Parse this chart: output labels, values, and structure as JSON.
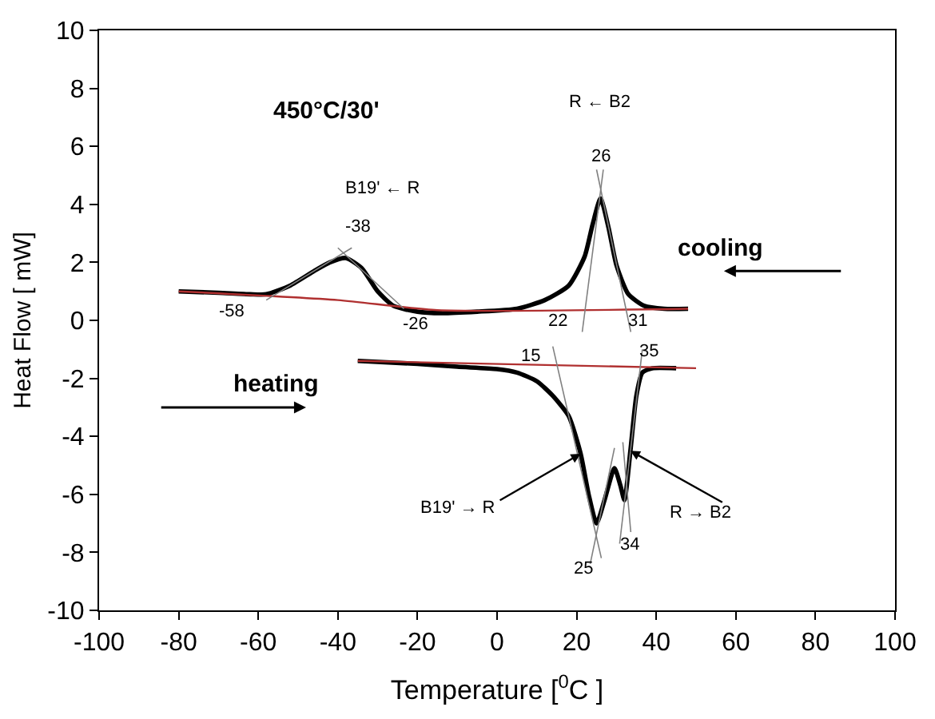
{
  "chart_data": {
    "type": "line",
    "xlabel": "Temperature [$^{0}$C ]",
    "ylabel": "Heat Flow [ mW]",
    "xlim": [
      -100,
      100
    ],
    "xticks": [
      -100,
      -80,
      -60,
      -40,
      -20,
      0,
      20,
      40,
      60,
      80,
      100
    ],
    "ylim": [
      -10,
      10
    ],
    "yticks": [
      -10,
      -8,
      -6,
      -4,
      -2,
      0,
      2,
      4,
      6,
      8,
      10
    ],
    "series": [
      {
        "color": "#000000",
        "x": [
          -80,
          -70,
          -62,
          -58,
          -52,
          -46,
          -42,
          -38,
          -34,
          -30,
          -26,
          -20,
          -14,
          -5,
          5,
          12,
          18,
          22,
          24,
          26,
          28,
          30,
          33,
          37,
          42,
          48
        ],
        "values": [
          1.0,
          0.95,
          0.9,
          0.9,
          1.2,
          1.7,
          2.0,
          2.15,
          1.8,
          1.0,
          0.5,
          0.3,
          0.25,
          0.3,
          0.4,
          0.7,
          1.2,
          2.2,
          3.3,
          4.2,
          3.2,
          1.9,
          0.9,
          0.5,
          0.4,
          0.4
        ]
      },
      {
        "color": "#000000",
        "x": [
          -35,
          -20,
          -10,
          0,
          5,
          10,
          14,
          18,
          21,
          23,
          25,
          27,
          29.5,
          31,
          32,
          33.5,
          35,
          36.5,
          39,
          45
        ],
        "values": [
          -1.4,
          -1.5,
          -1.6,
          -1.68,
          -1.8,
          -2.1,
          -2.6,
          -3.3,
          -4.6,
          -6.0,
          -7.0,
          -6.2,
          -5.1,
          -5.7,
          -6.2,
          -4.5,
          -2.6,
          -1.8,
          -1.65,
          -1.65
        ]
      },
      {
        "color": "#b03030",
        "x": [
          -80,
          -40,
          -15,
          48
        ],
        "values": [
          1.0,
          0.7,
          0.35,
          0.4
        ]
      },
      {
        "color": "#b03030",
        "x": [
          -35,
          50
        ],
        "values": [
          -1.4,
          -1.65
        ]
      },
      {
        "color": "#808080",
        "x": [
          -58,
          -36.5
        ],
        "values": [
          0.7,
          2.5
        ]
      },
      {
        "color": "#808080",
        "x": [
          -40,
          -23.4
        ],
        "values": [
          2.5,
          0.4
        ]
      },
      {
        "color": "#808080",
        "x": [
          21.4,
          26.7
        ],
        "values": [
          -0.4,
          5.2
        ]
      },
      {
        "color": "#808080",
        "x": [
          25,
          33.6
        ],
        "values": [
          5.2,
          -0.4
        ]
      },
      {
        "color": "#808080",
        "x": [
          14,
          26.2
        ],
        "values": [
          -0.9,
          -8.2
        ]
      },
      {
        "color": "#808080",
        "x": [
          29.5,
          23.4
        ],
        "values": [
          -4.4,
          -8.4
        ]
      },
      {
        "color": "#808080",
        "x": [
          31.6,
          33.6
        ],
        "values": [
          -4.2,
          -7.3
        ]
      },
      {
        "color": "#808080",
        "x": [
          30.8,
          36.5
        ],
        "values": [
          -7.7,
          -1.0
        ]
      }
    ],
    "annotations": [
      "450°C/30'",
      "R ← B2",
      "B19' ← R",
      "-38",
      "26",
      "-58",
      "-26",
      "22",
      "31",
      "15",
      "35",
      "25",
      "34",
      "cooling",
      "heating",
      {
        "text": "B19' → R",
        "x": 21,
        "y": -4.6
      },
      {
        "text": "R → B2",
        "x": 33.5,
        "y": -4.5
      }
    ]
  }
}
